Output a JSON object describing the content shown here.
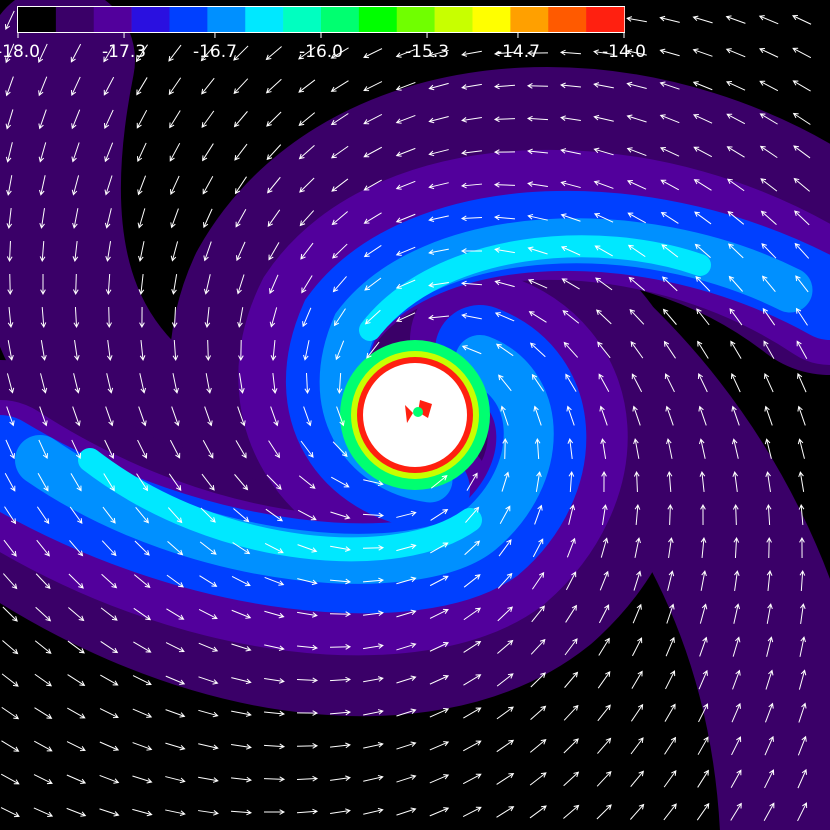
{
  "chart_data": {
    "type": "contour",
    "colorbar": {
      "clim": [
        -18,
        -14
      ],
      "ticks": [
        {
          "value": -18,
          "label": "-18.0"
        },
        {
          "value": -17.3,
          "label": "-17.3"
        },
        {
          "value": -16.7,
          "label": "-16.7"
        },
        {
          "value": -16,
          "label": "-16.0"
        },
        {
          "value": -15.3,
          "label": "-15.3"
        },
        {
          "value": -14.7,
          "label": "-14.7"
        },
        {
          "value": -14,
          "label": "-14.0"
        }
      ],
      "colors": [
        "#000000",
        "#3a0068",
        "#52009c",
        "#2a10e0",
        "#0040ff",
        "#0090ff",
        "#00e8ff",
        "#00ffc0",
        "#00ff70",
        "#00ff00",
        "#70ff00",
        "#c8ff00",
        "#ffff00",
        "#ffa000",
        "#ff5a00",
        "#ff2010"
      ]
    }
  }
}
